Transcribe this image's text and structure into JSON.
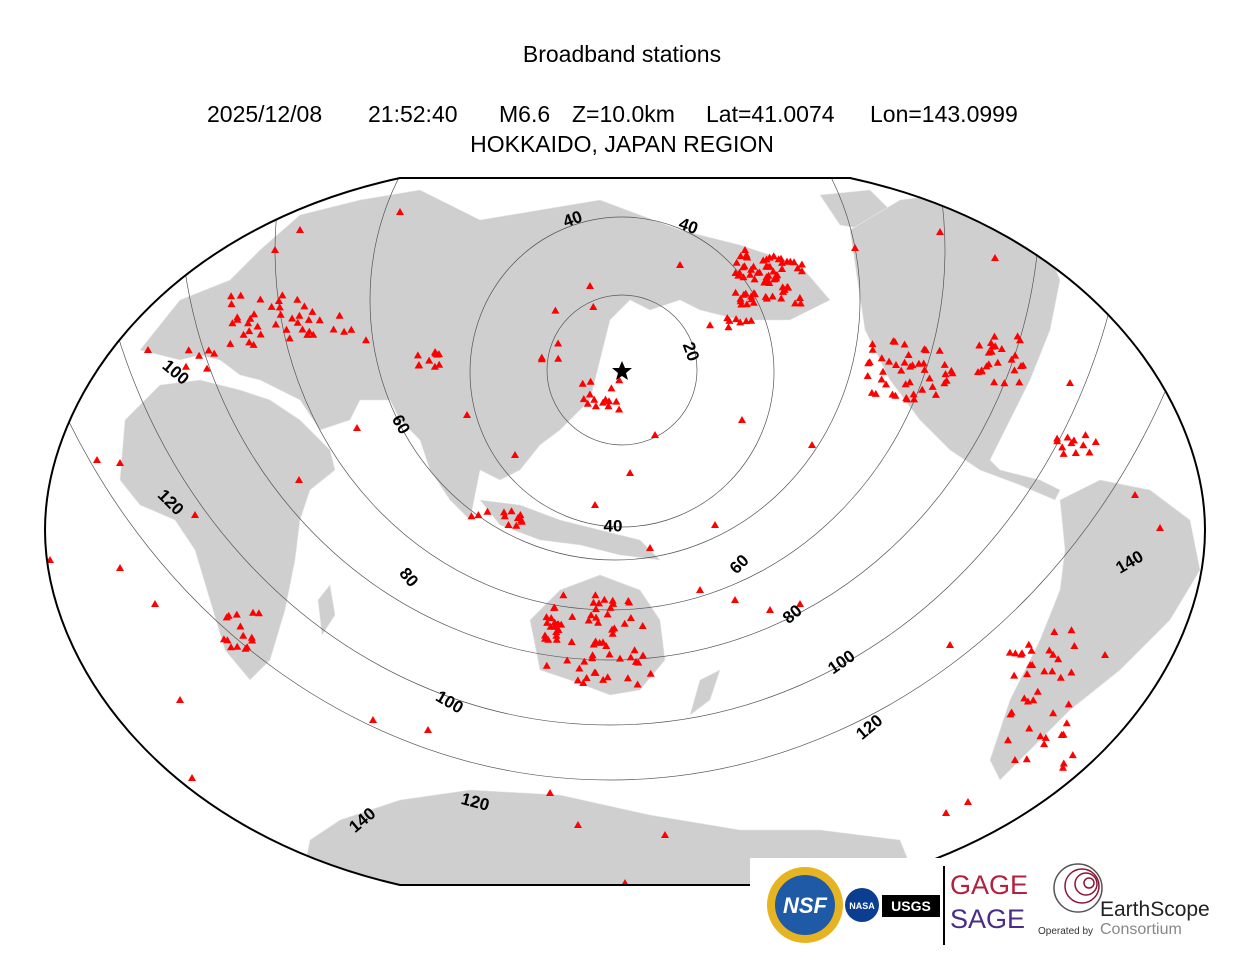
{
  "header": {
    "title": "Broadband stations",
    "date": "2025/12/08",
    "time": "21:52:40",
    "magnitude": "M6.6",
    "depth": "Z=10.0km",
    "latitude": "Lat=41.0074",
    "longitude": "Lon=143.0999",
    "region": "HOKKAIDO, JAPAN REGION"
  },
  "contours": {
    "labels": [
      20,
      40,
      40,
      40,
      60,
      60,
      80,
      80,
      100,
      100,
      100,
      120,
      120,
      120,
      140,
      140
    ]
  },
  "logos": {
    "nsf": "NSF",
    "nasa": "NASA",
    "usgs": "USGS",
    "gage": "GAGE",
    "sage": "SAGE",
    "operated_by": "Operated by",
    "earthscope": "EarthScope",
    "consortium": "Consortium"
  }
}
